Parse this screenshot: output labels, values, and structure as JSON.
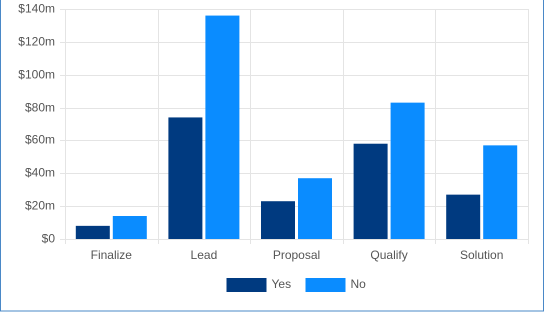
{
  "chart_data": {
    "type": "bar",
    "categories": [
      "Finalize",
      "Lead",
      "Proposal",
      "Qualify",
      "Solution"
    ],
    "series": [
      {
        "name": "Yes",
        "color": "#003a80",
        "values": [
          8,
          74,
          23,
          58,
          27
        ]
      },
      {
        "name": "No",
        "color": "#0a8cff",
        "values": [
          14,
          136,
          37,
          83,
          57
        ]
      }
    ],
    "ylim": [
      0,
      140
    ],
    "yticks": [
      {
        "value": 0,
        "label": "$0"
      },
      {
        "value": 20,
        "label": "$20m"
      },
      {
        "value": 40,
        "label": "$40m"
      },
      {
        "value": 60,
        "label": "$60m"
      },
      {
        "value": 80,
        "label": "$80m"
      },
      {
        "value": 100,
        "label": "$100m"
      },
      {
        "value": 120,
        "label": "$120m"
      },
      {
        "value": 140,
        "label": "$140m"
      }
    ],
    "grid": true,
    "legend": "bottom"
  }
}
